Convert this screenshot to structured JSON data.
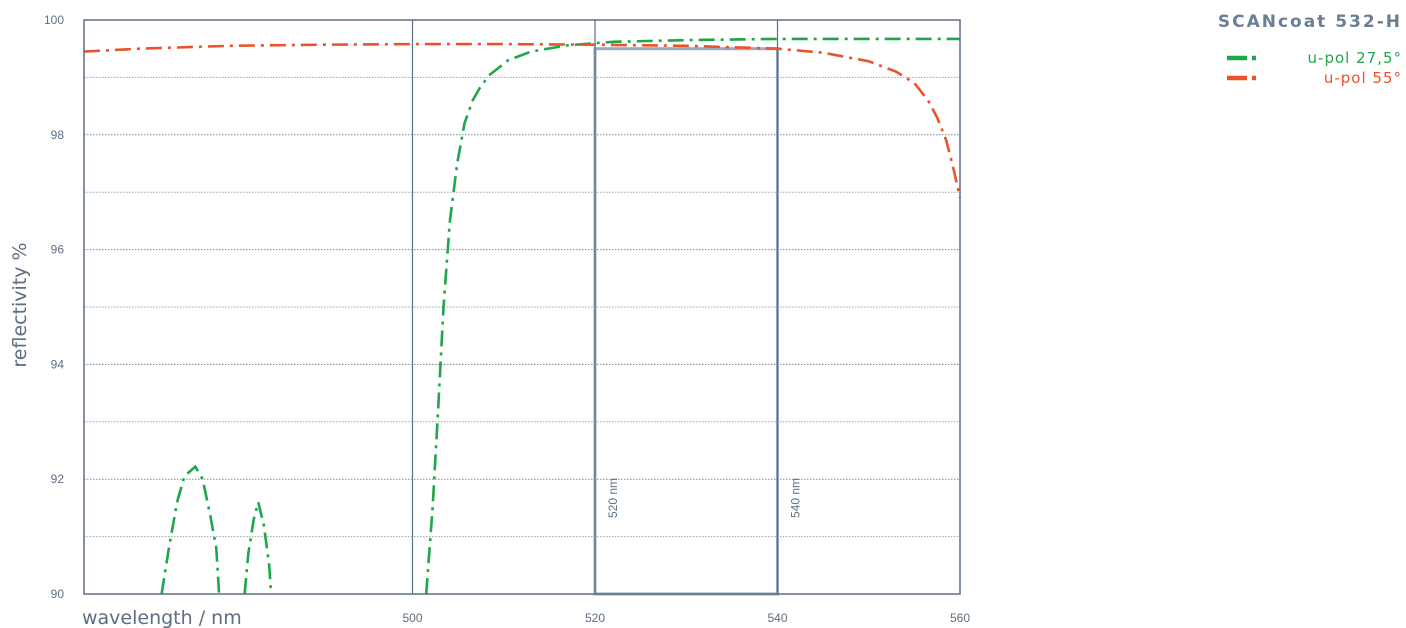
{
  "chart_data": {
    "type": "line",
    "title": "SCANcoat 532-H",
    "xlabel": "wavelength / nm",
    "ylabel": "reflectivity %",
    "xlim": [
      464,
      560
    ],
    "ylim": [
      90,
      100
    ],
    "x_ticks": [
      500,
      520,
      540,
      560
    ],
    "x_tick_labels": [
      "500",
      "520",
      "540",
      "560"
    ],
    "y_ticks": [
      90,
      92,
      94,
      96,
      98,
      100
    ],
    "y_tick_labels": [
      "90",
      "92",
      "94",
      "96",
      "98",
      "100"
    ],
    "grid": true,
    "legend_position": "top-right",
    "band": {
      "x_start": 520,
      "x_end": 540,
      "y_top": 99.5,
      "labels": [
        "520 nm",
        "540 nm"
      ],
      "color": "#9aaac6"
    },
    "series": [
      {
        "name": "u-pol 27,5°",
        "color": "#1fa64a",
        "segments": [
          [
            [
              472.5,
              90.0
            ],
            [
              473.3,
              90.8
            ],
            [
              474.2,
              91.6
            ],
            [
              475.0,
              92.05
            ],
            [
              476.2,
              92.22
            ],
            [
              477.0,
              92.0
            ],
            [
              477.8,
              91.4
            ],
            [
              478.5,
              90.8
            ],
            [
              478.8,
              90.0
            ]
          ],
          [
            [
              481.6,
              90.0
            ],
            [
              482.0,
              90.7
            ],
            [
              482.6,
              91.3
            ],
            [
              483.1,
              91.6
            ],
            [
              483.7,
              91.2
            ],
            [
              484.3,
              90.5
            ],
            [
              484.5,
              90.0
            ]
          ],
          [
            [
              501.5,
              90.0
            ],
            [
              502.2,
              91.5
            ],
            [
              502.8,
              93.2
            ],
            [
              503.4,
              95.0
            ],
            [
              504.1,
              96.5
            ],
            [
              504.9,
              97.5
            ],
            [
              505.7,
              98.2
            ],
            [
              506.6,
              98.6
            ],
            [
              507.5,
              98.85
            ],
            [
              508.5,
              99.05
            ],
            [
              510.5,
              99.3
            ],
            [
              513.0,
              99.45
            ],
            [
              517.0,
              99.56
            ],
            [
              522.0,
              99.62
            ],
            [
              530.0,
              99.65
            ],
            [
              540.0,
              99.67
            ],
            [
              550.0,
              99.67
            ],
            [
              560.0,
              99.67
            ]
          ]
        ]
      },
      {
        "name": "u-pol 55°",
        "color": "#e8532a",
        "segments": [
          [
            [
              464.0,
              99.45
            ],
            [
              470.0,
              99.5
            ],
            [
              480.0,
              99.55
            ],
            [
              490.0,
              99.57
            ],
            [
              500.0,
              99.58
            ],
            [
              510.0,
              99.58
            ],
            [
              520.0,
              99.57
            ],
            [
              530.0,
              99.55
            ],
            [
              540.0,
              99.5
            ],
            [
              545.0,
              99.43
            ],
            [
              550.0,
              99.28
            ],
            [
              553.0,
              99.1
            ],
            [
              555.0,
              98.9
            ],
            [
              556.5,
              98.6
            ],
            [
              557.5,
              98.3
            ],
            [
              558.5,
              97.9
            ],
            [
              559.3,
              97.4
            ],
            [
              560.0,
              96.9
            ]
          ]
        ]
      }
    ]
  }
}
